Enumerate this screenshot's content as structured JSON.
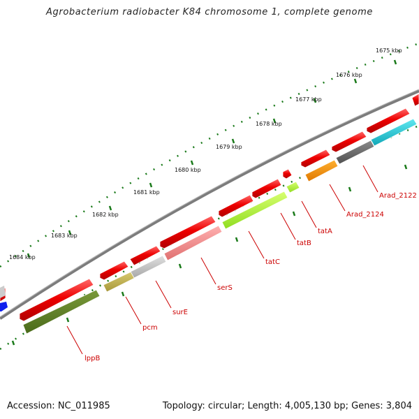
{
  "title": "Agrobacterium radiobacter K84 chromosome 1, complete genome",
  "footer": {
    "accession": "Accession: NC_011985",
    "topology": "Topology: circular; Length: 4,005,130 bp; Genes: 3,804"
  },
  "colors": {
    "backbone": "#7a7a7a",
    "tick": "#1a7a1a",
    "label": "#cc0000",
    "forward_gene": "#ee1111"
  },
  "ticks": [
    "1675 kbp",
    "1676 kbp",
    "1677 kbp",
    "1678 kbp",
    "1679 kbp",
    "1680 kbp",
    "1681 kbp",
    "1682 kbp",
    "1683 kbp",
    "1684 kbp"
  ],
  "gene_labels": [
    "lppB",
    "pcm",
    "surE",
    "serS",
    "tatC",
    "tatB",
    "tatA",
    "Arad_2124",
    "Arad_2122"
  ]
}
